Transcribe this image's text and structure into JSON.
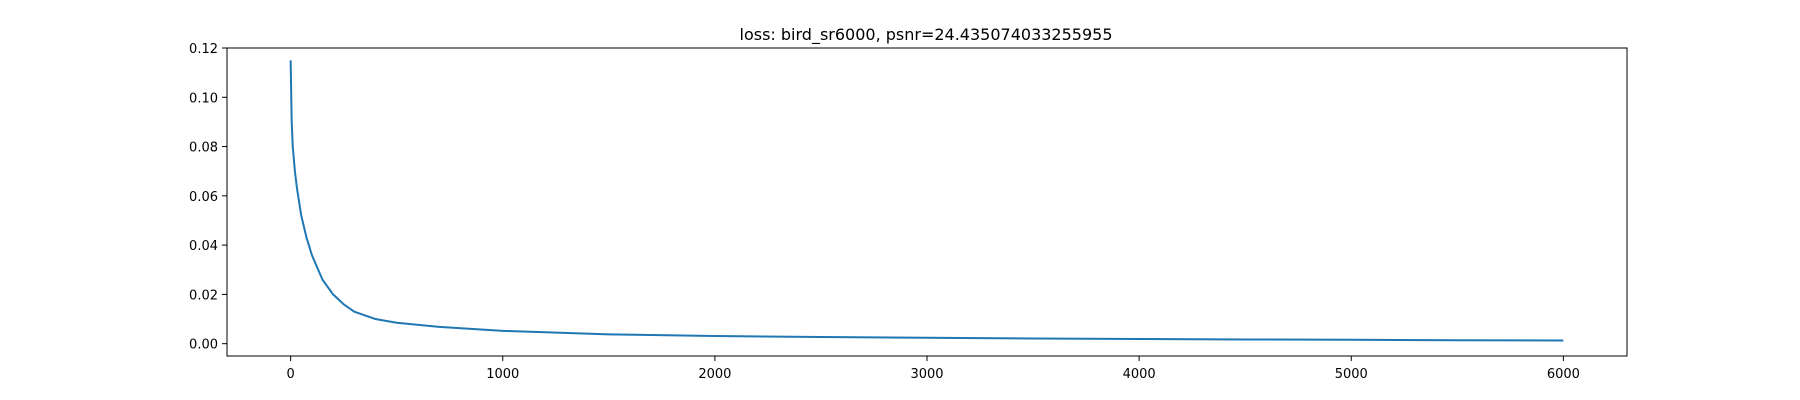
{
  "chart_data": {
    "type": "line",
    "title": "loss: bird_sr6000, psnr=24.435074033255955",
    "xlabel": "",
    "ylabel": "",
    "xlim": [
      -300,
      6300
    ],
    "ylim": [
      -0.005,
      0.12
    ],
    "xticks": [
      0,
      1000,
      2000,
      3000,
      4000,
      5000,
      6000
    ],
    "xtick_labels": [
      "0",
      "1000",
      "2000",
      "3000",
      "4000",
      "5000",
      "6000"
    ],
    "yticks": [
      0.0,
      0.02,
      0.04,
      0.06,
      0.08,
      0.1,
      0.12
    ],
    "ytick_labels": [
      "0.00",
      "0.02",
      "0.04",
      "0.06",
      "0.08",
      "0.10",
      "0.12"
    ],
    "grid": false,
    "legend": "none",
    "series": [
      {
        "color": "#1f77b4",
        "x": [
          0,
          5,
          10,
          20,
          30,
          50,
          75,
          100,
          150,
          200,
          250,
          300,
          400,
          500,
          700,
          1000,
          1500,
          2000,
          2500,
          3000,
          3500,
          4000,
          4500,
          5000,
          5500,
          6000
        ],
        "y": [
          0.115,
          0.09,
          0.08,
          0.07,
          0.063,
          0.052,
          0.043,
          0.036,
          0.026,
          0.02,
          0.016,
          0.013,
          0.01,
          0.0085,
          0.0068,
          0.0052,
          0.0038,
          0.0031,
          0.0027,
          0.0024,
          0.0021,
          0.0019,
          0.0017,
          0.0016,
          0.0014,
          0.0013
        ]
      }
    ]
  }
}
